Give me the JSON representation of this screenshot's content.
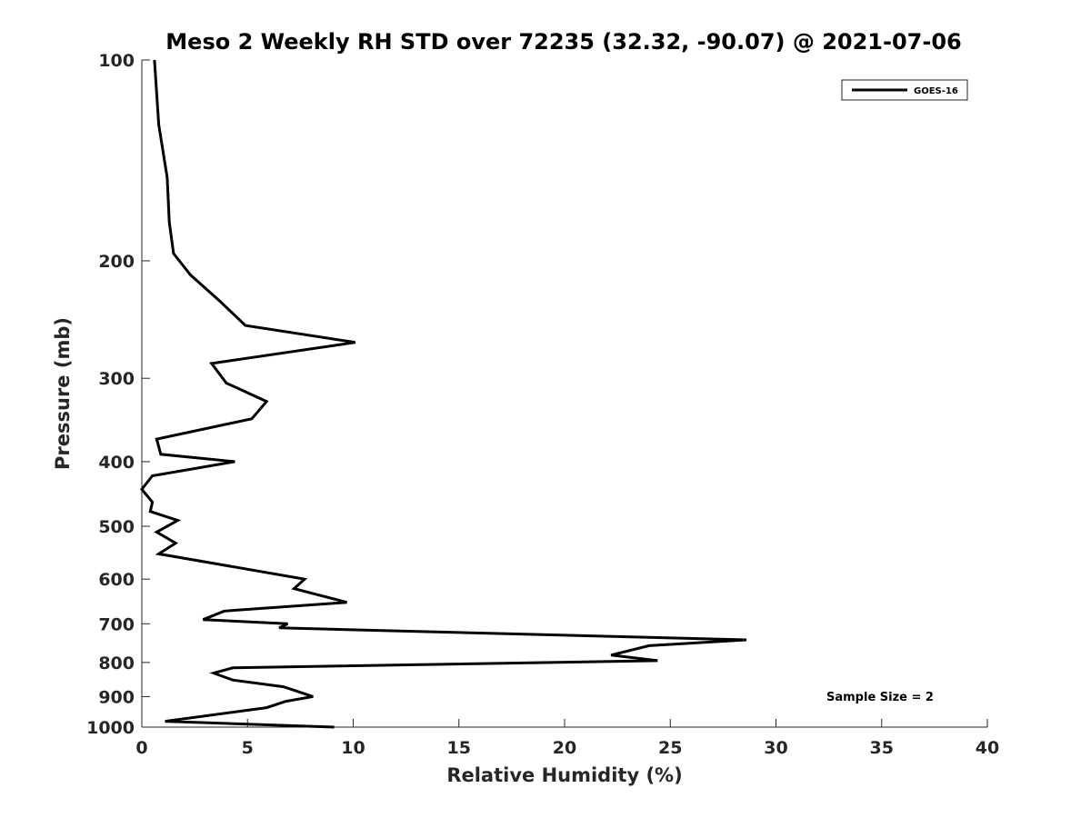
{
  "chart_data": {
    "type": "line",
    "title": "Meso 2 Weekly RH STD over 72235 (32.32, -90.07) @ 2021-07-06",
    "xlabel": "Relative Humidity (%)",
    "ylabel": "Pressure (mb)",
    "xlim": [
      0,
      40
    ],
    "ylim": [
      100,
      1000
    ],
    "y_scale": "log",
    "y_reversed": true,
    "x_ticks": [
      0,
      5,
      10,
      15,
      20,
      25,
      30,
      35,
      40
    ],
    "y_ticks": [
      100,
      200,
      300,
      400,
      500,
      600,
      700,
      800,
      900,
      1000
    ],
    "grid": false,
    "legend_position": "top-right",
    "annotation": "Sample Size = 2",
    "series": [
      {
        "name": "GOES-16",
        "color": "#000000",
        "x": [
          0.6,
          0.8,
          1.2,
          1.3,
          1.5,
          2.3,
          3.7,
          4.9,
          10.1,
          3.3,
          4.0,
          5.9,
          5.2,
          0.7,
          0.9,
          4.4,
          0.5,
          0.0,
          0.5,
          0.4,
          1.7,
          0.7,
          1.6,
          0.8,
          7.7,
          7.2,
          9.7,
          3.9,
          2.9,
          6.9,
          6.5,
          28.6,
          24.0,
          22.2,
          24.4,
          4.3,
          3.4,
          4.3,
          6.7,
          8.1,
          6.8,
          5.9,
          1.1,
          9.1
        ],
        "y": [
          100,
          125,
          150,
          175,
          195,
          210,
          230,
          250,
          265,
          285,
          305,
          325,
          345,
          370,
          390,
          400,
          420,
          440,
          460,
          475,
          490,
          510,
          530,
          550,
          600,
          620,
          650,
          670,
          690,
          700,
          710,
          740,
          755,
          780,
          795,
          815,
          830,
          850,
          870,
          900,
          915,
          935,
          980,
          1000
        ]
      }
    ]
  }
}
